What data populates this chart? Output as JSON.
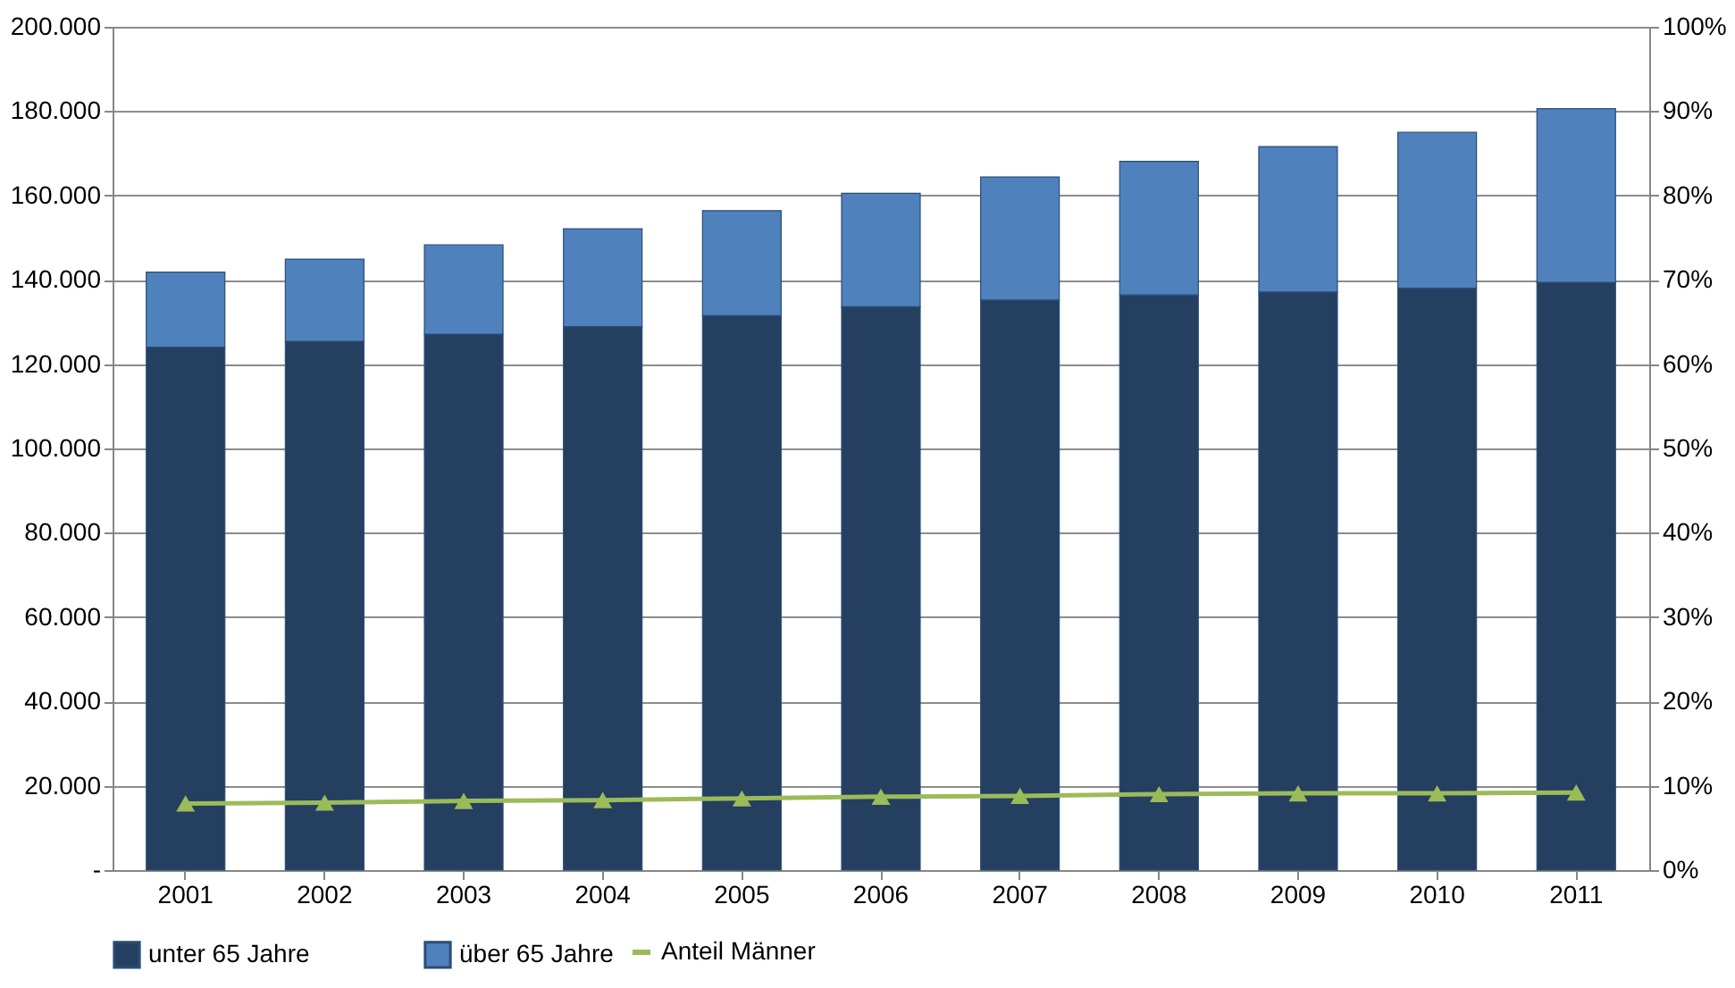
{
  "chart_data": {
    "type": "bar",
    "stacked": true,
    "categories": [
      "2001",
      "2002",
      "2003",
      "2004",
      "2005",
      "2006",
      "2007",
      "2008",
      "2009",
      "2010",
      "2011"
    ],
    "series": [
      {
        "name": "unter 65 Jahre",
        "color": "#243f60",
        "values": [
          124000,
          125400,
          127100,
          128900,
          131500,
          133600,
          135200,
          136400,
          137100,
          138000,
          139400
        ]
      },
      {
        "name": "über 65 Jahre",
        "color": "#4f81bd",
        "values": [
          17800,
          19500,
          21200,
          23200,
          24900,
          26900,
          29200,
          31700,
          34500,
          37000,
          41200
        ]
      },
      {
        "name": "Anteil Männer",
        "type": "line",
        "axis": "y2",
        "color": "#9bbb59",
        "marker": "triangle",
        "values": [
          7.9,
          8.0,
          8.2,
          8.3,
          8.5,
          8.7,
          8.8,
          9.0,
          9.1,
          9.1,
          9.2
        ]
      }
    ],
    "ylim": [
      0,
      200000
    ],
    "yticks": [
      {
        "value": 0,
        "label": "-"
      },
      {
        "value": 20000,
        "label": "20.000"
      },
      {
        "value": 40000,
        "label": "40.000"
      },
      {
        "value": 60000,
        "label": "60.000"
      },
      {
        "value": 80000,
        "label": "80.000"
      },
      {
        "value": 100000,
        "label": "100.000"
      },
      {
        "value": 120000,
        "label": "120.000"
      },
      {
        "value": 140000,
        "label": "140.000"
      },
      {
        "value": 160000,
        "label": "160.000"
      },
      {
        "value": 180000,
        "label": "180.000"
      },
      {
        "value": 200000,
        "label": "200.000"
      }
    ],
    "y2lim": [
      0,
      100
    ],
    "y2ticks": [
      {
        "value": 0,
        "label": "0%"
      },
      {
        "value": 10,
        "label": "10%"
      },
      {
        "value": 20,
        "label": "20%"
      },
      {
        "value": 30,
        "label": "30%"
      },
      {
        "value": 40,
        "label": "40%"
      },
      {
        "value": 50,
        "label": "50%"
      },
      {
        "value": 60,
        "label": "60%"
      },
      {
        "value": 70,
        "label": "70%"
      },
      {
        "value": 80,
        "label": "80%"
      },
      {
        "value": 90,
        "label": "90%"
      },
      {
        "value": 100,
        "label": "100%"
      }
    ],
    "grid": "y",
    "legend": "bottom"
  }
}
